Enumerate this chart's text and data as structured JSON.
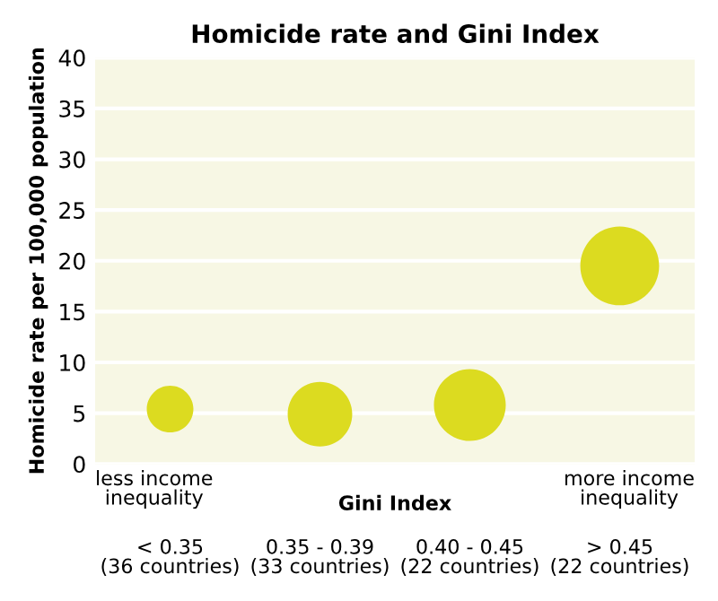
{
  "chart_data": {
    "type": "bubble",
    "title": "Homicide rate and Gini Index",
    "xlabel": "Gini Index",
    "ylabel": "Homicide rate per 100,000 population",
    "categories": [
      "< 0.35\n(36 countries)",
      "0.35 - 0.39\n(33 countries)",
      "0.40 - 0.45\n(22 countries)",
      "> 0.45\n(22 countries)"
    ],
    "values": [
      5.4,
      4.9,
      5.8,
      19.5
    ],
    "sizes": [
      0.35,
      0.67,
      0.83,
      1
    ],
    "color": "#dcdb20",
    "ylim": [
      0,
      40
    ],
    "yticks": [
      0,
      5,
      10,
      15,
      20,
      25,
      30,
      35,
      40
    ],
    "grid": "y",
    "annotations": [
      "less income\ninequality",
      "more income\ninequality"
    ]
  }
}
